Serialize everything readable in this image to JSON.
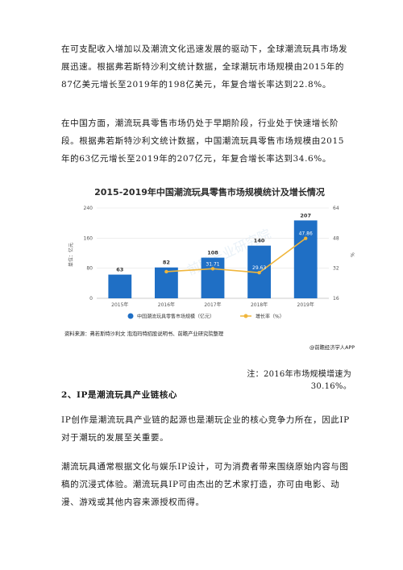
{
  "paragraphs": {
    "p1": "在可支配收入增加以及潮流文化迅速发展的驱动下，全球潮流玩具市场发展迅速。根据弗若斯特沙利文统计数据，全球潮玩市场规模由2015年的87亿美元增长至2019年的198亿美元，年复合增长率达到22.8%。",
    "p2": "在中国方面，潮流玩具零售市场仍处于早期阶段，行业处于快速增长阶段。根据弗若斯特沙利文统计数据，中国潮流玩具零售市场规模由2015年的63亿元增长至2019年的207亿元，年复合增长率达到34.6%。",
    "note": "注：2016年市场规模增速为30.16%。",
    "heading": "2、IP是潮流玩具产业链核心",
    "p4": "IP创作是潮流玩具产业链的起源也是潮玩企业的核心竞争力所在，因此IP对于潮玩的发展至关重要。",
    "p5": "潮流玩具通常根据文化与娱乐IP设计，可为消费者带来围绕原始内容与图稿的沉浸式体验。潮流玩具IP可由杰出的艺术家打造，亦可由电影、动漫、游戏或其他内容来源授权而得。"
  },
  "chart_data": {
    "type": "bar",
    "title": "2015-2019年中国潮流玩具零售市场规模统计及增长情况",
    "categories": [
      "2015年",
      "2016年",
      "2017年",
      "2018年",
      "2019年"
    ],
    "series": [
      {
        "name": "中国潮流玩具零售市场规模（亿元）",
        "kind": "bar",
        "axis": "left",
        "values": [
          63,
          82,
          108,
          140,
          207
        ],
        "color": "#1f6fc5"
      },
      {
        "name": "增长率（%）",
        "kind": "line",
        "axis": "right",
        "values": [
          null,
          30.16,
          31.71,
          29.63,
          47.86
        ],
        "color": "#f0b63c"
      }
    ],
    "ylabel_left": "单位：亿元",
    "ylabel_right": "%",
    "yticks_left": [
      "0",
      "80",
      "160",
      "240"
    ],
    "yticks_right": [
      "16",
      "32",
      "48",
      "64"
    ],
    "ylim_left": [
      0,
      240
    ],
    "ylim_right": [
      16,
      64
    ],
    "data_labels_bar": [
      "63",
      "82",
      "108",
      "140",
      "207"
    ],
    "data_labels_rate": [
      "",
      "",
      "31.71",
      "29.63",
      "47.86"
    ],
    "legend_position": "bottom",
    "source": "资料来源：弗若斯特沙利文 泡泡玛特招股说明书、前瞻产业研究院整理",
    "brand": "@前瞻经济学人APP",
    "watermark": "前瞻产业研究院"
  }
}
